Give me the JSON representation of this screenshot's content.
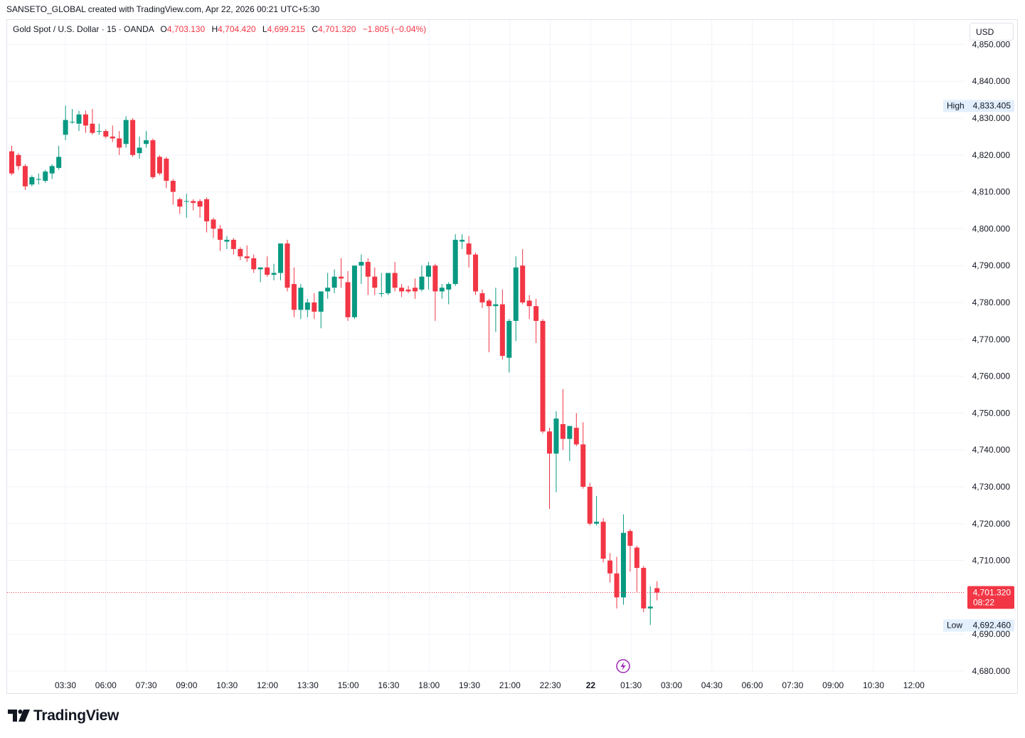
{
  "header": {
    "attribution": "SANSETO_GLOBAL created with TradingView.com, Apr 22, 2026 00:21 UTC+5:30"
  },
  "legend": {
    "symbol": "Gold Spot / U.S. Dollar · 15 · OANDA",
    "open_label": "O",
    "open": "4,703.130",
    "high_label": "H",
    "high": "4,704.420",
    "low_label": "L",
    "low": "4,699.215",
    "close_label": "C",
    "close": "4,701.320",
    "change": "−1.805 (−0.04%)"
  },
  "currency_button": "USD",
  "price_axis": {
    "ticks": [
      4850,
      4840,
      4830,
      4820,
      4810,
      4800,
      4790,
      4780,
      4770,
      4760,
      4750,
      4740,
      4730,
      4720,
      4710,
      4690,
      4680
    ],
    "tick_labels": [
      "4,850.000",
      "4,840.000",
      "4,830.000",
      "4,820.000",
      "4,810.000",
      "4,800.000",
      "4,790.000",
      "4,780.000",
      "4,770.000",
      "4,760.000",
      "4,750.000",
      "4,740.000",
      "4,730.000",
      "4,720.000",
      "4,710.000",
      "4,690.000",
      "4,680.000"
    ],
    "high_marker": {
      "label": "High",
      "value": 4833.405,
      "value_text": "4,833.405"
    },
    "low_marker": {
      "label": "Low",
      "value": 4692.46,
      "value_text": "4,692.460"
    },
    "last_price": {
      "value": 4701.32,
      "value_text": "4,701.320",
      "countdown": "08:22"
    }
  },
  "time_axis": {
    "labels": [
      "03:30",
      "06:00",
      "07:30",
      "09:00",
      "10:30",
      "12:00",
      "13:30",
      "15:00",
      "16:30",
      "18:00",
      "19:30",
      "21:00",
      "22:30",
      "22",
      "01:30",
      "03:00",
      "04:30",
      "06:00",
      "07:30",
      "09:00",
      "10:30",
      "12:00"
    ],
    "bold_label": "22"
  },
  "colors": {
    "up": "#089981",
    "down": "#f23645",
    "grid": "#f0f3fa",
    "last_price_line": "#f23645",
    "marker_bg": "#e3effd",
    "event_icon": "#9c27b0"
  },
  "icons": {
    "event_marker": "lightning-icon",
    "logo": "tradingview-logo-icon"
  },
  "logo_text": "TradingView",
  "chart_data": {
    "type": "candlestick",
    "title": "Gold Spot / U.S. Dollar · 15 · OANDA",
    "xlabel": "",
    "ylabel": "",
    "ylim": [
      4678,
      4852
    ],
    "grid": true,
    "candles": [
      [
        4821.0,
        4822.5,
        4814.5,
        4815.0
      ],
      [
        4820.0,
        4820.5,
        4816.0,
        4817.0
      ],
      [
        4817.0,
        4817.5,
        4810.5,
        4811.5
      ],
      [
        4812.0,
        4814.5,
        4811.5,
        4814.0
      ],
      [
        4813.5,
        4815.0,
        4812.0,
        4813.5
      ],
      [
        4813.0,
        4816.0,
        4812.5,
        4815.5
      ],
      [
        4815.0,
        4817.5,
        4813.5,
        4817.0
      ],
      [
        4816.5,
        4822.5,
        4816.0,
        4819.5
      ],
      [
        4825.5,
        4833.4,
        4824.0,
        4829.5
      ],
      [
        4829.0,
        4832.5,
        4828.5,
        4829.0
      ],
      [
        4828.5,
        4832.0,
        4826.5,
        4831.0
      ],
      [
        4831.0,
        4832.0,
        4826.0,
        4828.0
      ],
      [
        4828.5,
        4832.5,
        4825.5,
        4826.0
      ],
      [
        4826.5,
        4828.5,
        4825.5,
        4826.5
      ],
      [
        4826.5,
        4827.0,
        4824.5,
        4825.0
      ],
      [
        4825.0,
        4828.0,
        4823.5,
        4824.5
      ],
      [
        4824.5,
        4826.5,
        4820.0,
        4822.0
      ],
      [
        4823.0,
        4830.5,
        4822.0,
        4829.5
      ],
      [
        4829.5,
        4830.0,
        4819.5,
        4820.0
      ],
      [
        4820.5,
        4825.0,
        4819.0,
        4822.0
      ],
      [
        4823.0,
        4826.5,
        4822.0,
        4824.0
      ],
      [
        4824.0,
        4824.5,
        4813.5,
        4814.0
      ],
      [
        4819.5,
        4820.0,
        4814.5,
        4815.0
      ],
      [
        4819.0,
        4819.5,
        4811.0,
        4813.0
      ],
      [
        4813.0,
        4813.5,
        4806.5,
        4810.0
      ],
      [
        4808.0,
        4808.5,
        4804.0,
        4806.0
      ],
      [
        4807.5,
        4809.5,
        4803.0,
        4807.5
      ],
      [
        4807.5,
        4808.0,
        4805.0,
        4807.0
      ],
      [
        4807.5,
        4808.0,
        4803.0,
        4806.0
      ],
      [
        4808.0,
        4808.5,
        4799.0,
        4802.0
      ],
      [
        4802.5,
        4803.0,
        4797.5,
        4800.0
      ],
      [
        4800.0,
        4801.0,
        4794.0,
        4797.0
      ],
      [
        4796.5,
        4798.0,
        4794.5,
        4797.0
      ],
      [
        4797.0,
        4797.5,
        4793.0,
        4794.5
      ],
      [
        4794.5,
        4795.0,
        4791.5,
        4792.5
      ],
      [
        4792.5,
        4795.5,
        4791.0,
        4792.0
      ],
      [
        4792.0,
        4793.0,
        4788.0,
        4789.0
      ],
      [
        4789.0,
        4789.5,
        4785.5,
        4789.5
      ],
      [
        4789.5,
        4792.5,
        4787.0,
        4787.5
      ],
      [
        4787.5,
        4790.5,
        4786.0,
        4788.0
      ],
      [
        4788.0,
        4795.5,
        4786.0,
        4796.0
      ],
      [
        4796.0,
        4797.0,
        4783.0,
        4784.0
      ],
      [
        4785.0,
        4789.5,
        4776.0,
        4778.0
      ],
      [
        4778.0,
        4785.0,
        4775.5,
        4784.0
      ],
      [
        4778.0,
        4781.0,
        4776.0,
        4780.0
      ],
      [
        4780.0,
        4782.5,
        4775.5,
        4777.5
      ],
      [
        4777.5,
        4783.0,
        4773.0,
        4783.0
      ],
      [
        4783.0,
        4788.0,
        4781.0,
        4784.0
      ],
      [
        4784.0,
        4789.0,
        4782.5,
        4787.0
      ],
      [
        4787.0,
        4792.0,
        4784.0,
        4786.5
      ],
      [
        4785.5,
        4788.5,
        4775.0,
        4776.0
      ],
      [
        4776.0,
        4790.0,
        4775.5,
        4790.0
      ],
      [
        4790.0,
        4793.0,
        4785.0,
        4791.0
      ],
      [
        4791.0,
        4792.0,
        4782.0,
        4787.0
      ],
      [
        4787.0,
        4789.5,
        4782.0,
        4784.0
      ],
      [
        4782.5,
        4788.0,
        4781.5,
        4782.5
      ],
      [
        4782.5,
        4788.0,
        4782.0,
        4788.0
      ],
      [
        4788.0,
        4791.0,
        4783.0,
        4784.0
      ],
      [
        4784.0,
        4785.0,
        4781.5,
        4783.0
      ],
      [
        4783.5,
        4784.5,
        4782.5,
        4783.0
      ],
      [
        4784.0,
        4786.5,
        4781.0,
        4783.0
      ],
      [
        4783.5,
        4790.0,
        4783.0,
        4787.0
      ],
      [
        4787.0,
        4791.0,
        4783.5,
        4790.0
      ],
      [
        4790.0,
        4790.5,
        4775.0,
        4783.0
      ],
      [
        4783.0,
        4785.0,
        4781.0,
        4784.0
      ],
      [
        4783.5,
        4785.5,
        4779.5,
        4785.0
      ],
      [
        4785.0,
        4798.5,
        4784.5,
        4797.0
      ],
      [
        4796.5,
        4798.5,
        4794.5,
        4797.0
      ],
      [
        4796.0,
        4798.0,
        4789.5,
        4793.0
      ],
      [
        4793.0,
        4793.5,
        4782.0,
        4783.0
      ],
      [
        4782.5,
        4783.5,
        4778.5,
        4780.0
      ],
      [
        4780.5,
        4781.0,
        4766.5,
        4779.0
      ],
      [
        4779.0,
        4784.0,
        4772.0,
        4779.5
      ],
      [
        4779.5,
        4783.5,
        4764.5,
        4765.5
      ],
      [
        4765.0,
        4775.5,
        4761.0,
        4775.0
      ],
      [
        4775.0,
        4792.5,
        4769.5,
        4789.5
      ],
      [
        4790.0,
        4794.5,
        4779.5,
        4780.0
      ],
      [
        4780.5,
        4782.0,
        4775.5,
        4779.0
      ],
      [
        4779.0,
        4781.0,
        4769.0,
        4775.0
      ],
      [
        4775.0,
        4775.5,
        4744.5,
        4745.0
      ],
      [
        4745.0,
        4746.0,
        4724.0,
        4739.0
      ],
      [
        4739.0,
        4750.5,
        4728.5,
        4748.5
      ],
      [
        4747.0,
        4756.5,
        4740.0,
        4743.0
      ],
      [
        4743.0,
        4746.5,
        4737.0,
        4746.5
      ],
      [
        4746.0,
        4750.0,
        4741.0,
        4741.5
      ],
      [
        4741.5,
        4747.5,
        4729.5,
        4730.0
      ],
      [
        4730.0,
        4731.0,
        4719.5,
        4720.0
      ],
      [
        4720.0,
        4727.5,
        4719.5,
        4720.5
      ],
      [
        4720.5,
        4721.5,
        4709.5,
        4710.5
      ],
      [
        4710.0,
        4712.0,
        4704.0,
        4706.5
      ],
      [
        4706.5,
        4711.0,
        4697.0,
        4700.0
      ],
      [
        4700.0,
        4722.5,
        4698.0,
        4717.5
      ],
      [
        4718.0,
        4718.5,
        4707.0,
        4714.0
      ],
      [
        4713.5,
        4714.0,
        4701.5,
        4708.0
      ],
      [
        4708.0,
        4708.5,
        4696.0,
        4697.0
      ],
      [
        4697.0,
        4703.0,
        4692.5,
        4697.5
      ],
      [
        4702.5,
        4704.4,
        4699.2,
        4701.3
      ]
    ]
  }
}
